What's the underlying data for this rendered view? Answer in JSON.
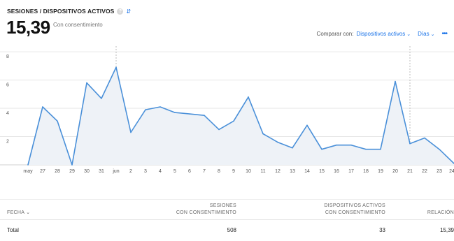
{
  "header": {
    "metric_title": "SESIONES / DISPOSITIVOS ACTIVOS",
    "help_icon": "?",
    "swap_icon": "⇵",
    "big_value": "15,39",
    "subtitle": "Con consentimiento"
  },
  "controls": {
    "compare_label": "Comparar con:",
    "compare_value": "Dispositivos activos",
    "period_value": "Días",
    "more_icon": "•••"
  },
  "chart_data": {
    "type": "area",
    "title": "",
    "x": [
      "may",
      "27",
      "28",
      "29",
      "30",
      "31",
      "jun",
      "2",
      "3",
      "4",
      "5",
      "6",
      "7",
      "8",
      "9",
      "10",
      "11",
      "12",
      "13",
      "14",
      "15",
      "16",
      "17",
      "18",
      "19",
      "20",
      "21",
      "22",
      "23",
      "24"
    ],
    "y_ticks": [
      "8",
      "6",
      "4",
      "2"
    ],
    "ylim": [
      0,
      8.4
    ],
    "series": [
      {
        "color": "#4a90d9",
        "values": [
          0,
          4.1,
          3.1,
          0,
          5.8,
          4.7,
          6.9,
          2.3,
          3.9,
          4.1,
          3.7,
          3.6,
          3.5,
          2.5,
          3.1,
          4.8,
          2.2,
          1.6,
          1.2,
          2.8,
          1.1,
          1.4,
          1.4,
          1.1,
          1.1,
          5.9,
          1.5,
          1.9,
          1.1,
          0.1
        ]
      }
    ],
    "grid": true,
    "dashed_markers_at": [
      "jun",
      "21"
    ]
  },
  "table": {
    "columns": [
      {
        "label_line1": "FECHA",
        "label_line2": ""
      },
      {
        "label_line1": "SESIONES",
        "label_line2": "CON CONSENTIMIENTO"
      },
      {
        "label_line1": "DISPOSITIVOS ACTIVOS",
        "label_line2": "CON CONSENTIMIENTO"
      },
      {
        "label_line1": "RELACIÓN",
        "label_line2": ""
      }
    ],
    "sort_icon": "⌄",
    "total_row": {
      "label": "Total",
      "sesiones": "508",
      "dispositivos": "33",
      "relacion": "15,39"
    }
  },
  "colors": {
    "accent": "#1a73e8",
    "line": "#4a90d9",
    "fill": "#eef2f7",
    "grid": "#e6e6e6"
  }
}
